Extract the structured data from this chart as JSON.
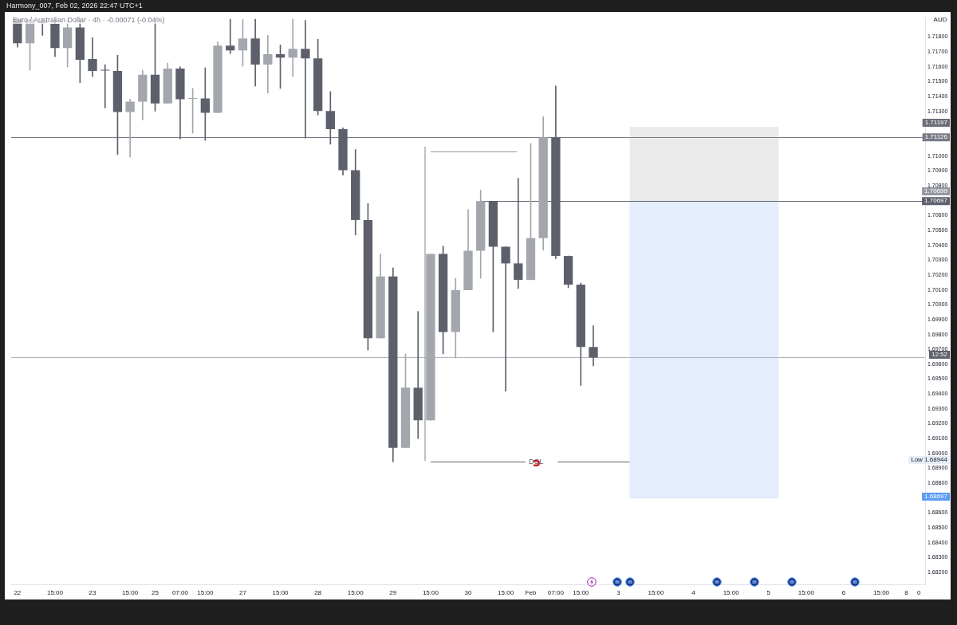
{
  "chart_data": {
    "type": "candlestick",
    "title": "Harmony_007, Feb 02, 2026 22:47 UTC+1",
    "subtitle": "Euro / Australian Dollar · 4h · -0.00071 (-0.04%)",
    "ylabel": "AUD",
    "categories": [
      "22",
      null,
      null,
      "15:00",
      null,
      null,
      "23",
      null,
      null,
      "15:00",
      null,
      "25",
      null,
      "07:00",
      null,
      "15:00",
      null,
      null,
      "27",
      null,
      null,
      "15:00",
      null,
      null,
      "28",
      null,
      null,
      "15:00",
      null,
      null,
      "29",
      null,
      null,
      "15:00",
      null,
      null,
      "30",
      null,
      null,
      "15:00",
      null,
      "Feb",
      null,
      "07:00",
      null,
      "15:00",
      null,
      null,
      "3",
      null,
      null,
      "15:00",
      null,
      null,
      "4",
      null,
      null,
      "15:00",
      null,
      null,
      "5",
      null,
      null,
      "15:00",
      null,
      null,
      "6",
      null,
      null,
      "15:00",
      null,
      "8",
      "0"
    ],
    "ohlc": [
      [
        1.7192,
        1.7192,
        1.71732,
        1.71758
      ],
      [
        1.71758,
        1.7192,
        1.71577,
        1.7192
      ],
      [
        1.71898,
        1.7192,
        1.71811,
        1.71894
      ],
      [
        1.7189,
        1.7192,
        1.71668,
        1.71726
      ],
      [
        1.71726,
        1.7192,
        1.71599,
        1.71864
      ],
      [
        1.71864,
        1.7192,
        1.71493,
        1.71647
      ],
      [
        1.71652,
        1.71795,
        1.71535,
        1.71572
      ],
      [
        1.71579,
        1.71615,
        1.71323,
        1.71575
      ],
      [
        1.71572,
        1.71678,
        1.7101,
        1.71296
      ],
      [
        1.71296,
        1.71381,
        1.70994,
        1.71365
      ],
      [
        1.71365,
        1.71577,
        1.71243,
        1.71546
      ],
      [
        1.71546,
        1.7192,
        1.71302,
        1.71354
      ],
      [
        1.71354,
        1.71625,
        1.71354,
        1.71588
      ],
      [
        1.71588,
        1.71599,
        1.71116,
        1.71381
      ],
      [
        1.71385,
        1.71455,
        1.71153,
        1.71389
      ],
      [
        1.71387,
        1.71593,
        1.71105,
        1.71291
      ],
      [
        1.71291,
        1.71768,
        1.71291,
        1.71742
      ],
      [
        1.71742,
        1.7192,
        1.71689,
        1.7171
      ],
      [
        1.7171,
        1.71917,
        1.71604,
        1.7179
      ],
      [
        1.7179,
        1.7192,
        1.71471,
        1.71615
      ],
      [
        1.71615,
        1.71811,
        1.71424,
        1.71684
      ],
      [
        1.71684,
        1.71747,
        1.71455,
        1.71662
      ],
      [
        1.71662,
        1.7192,
        1.71535,
        1.71721
      ],
      [
        1.71721,
        1.71912,
        1.71121,
        1.71657
      ],
      [
        1.71657,
        1.71784,
        1.71275,
        1.71302
      ],
      [
        1.71302,
        1.71434,
        1.71079,
        1.7118
      ],
      [
        1.7118,
        1.7119,
        1.70872,
        1.70904
      ],
      [
        1.70904,
        1.71043,
        1.70469,
        1.7057
      ],
      [
        1.7057,
        1.70681,
        1.69695,
        1.69775
      ],
      [
        1.69775,
        1.70342,
        1.69775,
        1.7019
      ],
      [
        1.7019,
        1.70248,
        1.68944,
        1.69038
      ],
      [
        1.69038,
        1.69669,
        1.69038,
        1.69442
      ],
      [
        1.69442,
        1.69955,
        1.691,
        1.69223
      ],
      [
        1.69223,
        1.70342,
        1.69223,
        1.70342
      ],
      [
        1.70342,
        1.70395,
        1.69669,
        1.69817
      ],
      [
        1.69817,
        1.70178,
        1.69642,
        1.70098
      ],
      [
        1.70098,
        1.7064,
        1.70098,
        1.70363
      ],
      [
        1.70363,
        1.7077,
        1.70178,
        1.70697
      ],
      [
        1.70697,
        1.70697,
        1.69817,
        1.7039
      ],
      [
        1.7039,
        1.7039,
        1.69419,
        1.70278
      ],
      [
        1.70278,
        1.7085,
        1.70109,
        1.70167
      ],
      [
        1.70167,
        1.71084,
        1.70167,
        1.70448
      ],
      [
        1.70448,
        1.71265,
        1.70367,
        1.71126
      ],
      [
        1.71126,
        1.71471,
        1.7031,
        1.70328
      ],
      [
        1.70328,
        1.70328,
        1.70114,
        1.70135
      ],
      [
        1.70135,
        1.70146,
        1.69457,
        1.69716
      ],
      [
        1.69716,
        1.69859,
        1.69589,
        1.69645
      ],
      null,
      null,
      null,
      null,
      null,
      null,
      null,
      null,
      null,
      null,
      null,
      null,
      null,
      null,
      null,
      null,
      null,
      null,
      null,
      null,
      null,
      null,
      null,
      null,
      null,
      null
    ],
    "colors": [
      "#5d606b",
      "#a3a6ad",
      "#5d606b",
      "#5d606b",
      "#a3a6ad",
      "#5d606b",
      "#5d606b",
      "#5d606b",
      "#5d606b",
      "#a3a6ad",
      "#a3a6ad",
      "#5d606b",
      "#a3a6ad",
      "#5d606b",
      "#a3a6ad",
      "#5d606b",
      "#a3a6ad",
      "#5d606b",
      "#a3a6ad",
      "#5d606b",
      "#a3a6ad",
      "#5d606b",
      "#a3a6ad",
      "#5d606b",
      "#5d606b",
      "#5d606b",
      "#5d606b",
      "#5d606b",
      "#5d606b",
      "#a3a6ad",
      "#5d606b",
      "#a3a6ad",
      "#5d606b",
      "#a3a6ad",
      "#5d606b",
      "#a3a6ad",
      "#a3a6ad",
      "#a3a6ad",
      "#5d606b",
      "#5d606b",
      "#5d606b",
      "#a3a6ad",
      "#a3a6ad",
      "#5d606b",
      "#5d606b",
      "#5d606b",
      "#5d606b",
      null,
      null,
      null,
      null,
      null,
      null,
      null,
      null,
      null,
      null,
      null,
      null,
      null,
      null,
      null,
      null,
      null,
      null,
      null,
      null,
      null,
      null,
      null,
      null,
      null,
      null
    ],
    "ylim": [
      1.6812,
      1.7193
    ],
    "yticks": [
      {
        "value": 1.682,
        "label": "1.68200"
      },
      {
        "value": 1.683,
        "label": "1.68300"
      },
      {
        "value": 1.684,
        "label": "1.68400"
      },
      {
        "value": 1.685,
        "label": "1.68500"
      },
      {
        "value": 1.686,
        "label": "1.68600"
      },
      {
        "value": 1.688,
        "label": "1.68800"
      },
      {
        "value": 1.689,
        "label": "1.68900"
      },
      {
        "value": 1.69,
        "label": "1.69000"
      },
      {
        "value": 1.691,
        "label": "1.69100"
      },
      {
        "value": 1.692,
        "label": "1.69200"
      },
      {
        "value": 1.693,
        "label": "1.69300"
      },
      {
        "value": 1.694,
        "label": "1.69400"
      },
      {
        "value": 1.695,
        "label": "1.69500"
      },
      {
        "value": 1.696,
        "label": "1.69600"
      },
      {
        "value": 1.697,
        "label": "1.69700"
      },
      {
        "value": 1.698,
        "label": "1.69800"
      },
      {
        "value": 1.699,
        "label": "1.69900"
      },
      {
        "value": 1.7,
        "label": "1.70000"
      },
      {
        "value": 1.701,
        "label": "1.70100"
      },
      {
        "value": 1.702,
        "label": "1.70200"
      },
      {
        "value": 1.703,
        "label": "1.70300"
      },
      {
        "value": 1.704,
        "label": "1.70400"
      },
      {
        "value": 1.705,
        "label": "1.70500"
      },
      {
        "value": 1.706,
        "label": "1.70600"
      },
      {
        "value": 1.708,
        "label": "1.70800"
      },
      {
        "value": 1.709,
        "label": "1.70900"
      },
      {
        "value": 1.71,
        "label": "1.71000"
      },
      {
        "value": 1.713,
        "label": "1.71300"
      },
      {
        "value": 1.714,
        "label": "1.71400"
      },
      {
        "value": 1.715,
        "label": "1.71500"
      },
      {
        "value": 1.716,
        "label": "1.71600"
      },
      {
        "value": 1.717,
        "label": "1.71700"
      },
      {
        "value": 1.718,
        "label": "1.71800"
      }
    ],
    "ref_lines": [
      {
        "axis": "y",
        "value": 1.71126,
        "label": "1.71126",
        "color": "#787b86"
      },
      {
        "axis": "y",
        "value": 1.70697,
        "label": "1.70697",
        "color": "#5d606b"
      },
      {
        "axis": "y",
        "value": 1.69645,
        "color": "#b2b5be"
      },
      {
        "axis": "y",
        "value": 1.68944,
        "label": "DOL",
        "color": "#5d606b"
      },
      {
        "axis": "y",
        "value": 1.71032,
        "color": "#9598a1"
      }
    ],
    "bands": [
      {
        "axis": "y",
        "from": 1.70697,
        "to": 1.71197,
        "color": "#ebebec"
      },
      {
        "axis": "y",
        "from": 1.70697,
        "to": 1.68697,
        "color": "#e3edfc"
      }
    ],
    "annotations": [
      "1.70699",
      "Low 1.68944",
      "12:52",
      "1.71197",
      "1.68697"
    ],
    "grid": false,
    "legend": false
  }
}
